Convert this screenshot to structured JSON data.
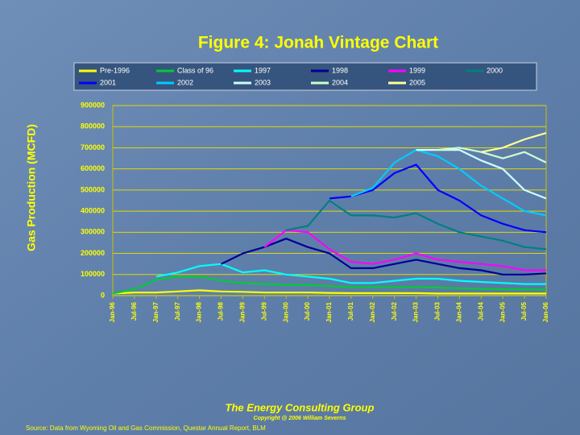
{
  "chart_data": {
    "type": "stacked_line",
    "title": "Figure 4:  Jonah Vintage Chart",
    "y_label": "Gas Production (MCFD)",
    "footer_title": "The Energy Consulting Group",
    "copyright": "Copyright @ 2006 William Severns",
    "source": "Source:  Data from Wyoming Oil and Gas Commission, Questar Annual Report, BLM",
    "categories": [
      "Jan-96",
      "Jul-96",
      "Jan-97",
      "Jul-97",
      "Jan-98",
      "Jul-98",
      "Jan-99",
      "Jul-99",
      "Jan-00",
      "Jul-00",
      "Jan-01",
      "Jul-01",
      "Jan-02",
      "Jul-02",
      "Jan-03",
      "Jul-03",
      "Jan-04",
      "Jul-04",
      "Jan-05",
      "Jul-05",
      "Jan-06"
    ],
    "ylim": [
      0,
      900000
    ],
    "yticks": [
      0,
      100000,
      200000,
      300000,
      400000,
      500000,
      600000,
      700000,
      800000,
      900000
    ],
    "grid": true,
    "legend": "top",
    "series": [
      {
        "name": "Pre-1996",
        "color": "#ffff00",
        "values": [
          10000,
          15000,
          15000,
          20000,
          25000,
          20000,
          18000,
          15000,
          15000,
          15000,
          13000,
          12000,
          12000,
          12000,
          12000,
          10000,
          10000,
          10000,
          10000,
          10000,
          10000
        ]
      },
      {
        "name": "Class of 96",
        "color": "#00cc33",
        "values": [
          0,
          15000,
          60000,
          70000,
          65000,
          50000,
          42000,
          40000,
          35000,
          35000,
          32000,
          28000,
          28000,
          28000,
          28000,
          28000,
          25000,
          22000,
          20000,
          20000,
          18000
        ]
      },
      {
        "name": "1997",
        "color": "#00ffff",
        "values": [
          null,
          null,
          15000,
          20000,
          50000,
          80000,
          50000,
          65000,
          50000,
          40000,
          35000,
          20000,
          20000,
          30000,
          40000,
          42000,
          35000,
          33000,
          30000,
          25000,
          27000
        ]
      },
      {
        "name": "1998",
        "color": "#000099",
        "values": [
          null,
          null,
          null,
          null,
          null,
          0,
          90000,
          110000,
          170000,
          140000,
          120000,
          70000,
          70000,
          80000,
          90000,
          70000,
          60000,
          55000,
          40000,
          45000,
          50000
        ]
      },
      {
        "name": "1999",
        "color": "#ff00ff",
        "values": [
          null,
          null,
          null,
          null,
          null,
          null,
          null,
          0,
          40000,
          70000,
          20000,
          30000,
          20000,
          20000,
          30000,
          20000,
          30000,
          30000,
          40000,
          20000,
          15000
        ]
      },
      {
        "name": "2000",
        "color": "#008080",
        "values": [
          null,
          null,
          null,
          null,
          null,
          null,
          null,
          null,
          0,
          30000,
          230000,
          220000,
          230000,
          200000,
          190000,
          170000,
          140000,
          130000,
          120000,
          110000,
          100000
        ]
      },
      {
        "name": "2001",
        "color": "#0000ff",
        "values": [
          null,
          null,
          null,
          null,
          null,
          null,
          null,
          null,
          null,
          null,
          10000,
          90000,
          120000,
          210000,
          230000,
          160000,
          150000,
          100000,
          80000,
          80000,
          80000
        ]
      },
      {
        "name": "2002",
        "color": "#00ccff",
        "values": [
          null,
          null,
          null,
          null,
          null,
          null,
          null,
          null,
          null,
          null,
          null,
          0,
          10000,
          50000,
          70000,
          160000,
          150000,
          140000,
          120000,
          90000,
          80000
        ]
      },
      {
        "name": "2003",
        "color": "#ccffff",
        "values": [
          null,
          null,
          null,
          null,
          null,
          null,
          null,
          null,
          null,
          null,
          null,
          null,
          null,
          null,
          0,
          30000,
          90000,
          120000,
          140000,
          100000,
          80000
        ]
      },
      {
        "name": "2004",
        "color": "#ccffcc",
        "values": [
          null,
          null,
          null,
          null,
          null,
          null,
          null,
          null,
          null,
          null,
          null,
          null,
          null,
          null,
          null,
          0,
          10000,
          40000,
          50000,
          180000,
          170000
        ]
      },
      {
        "name": "2005",
        "color": "#ffff99",
        "values": [
          null,
          null,
          null,
          null,
          null,
          null,
          null,
          null,
          null,
          null,
          null,
          null,
          null,
          null,
          null,
          null,
          null,
          0,
          50000,
          60000,
          140000
        ]
      }
    ]
  }
}
